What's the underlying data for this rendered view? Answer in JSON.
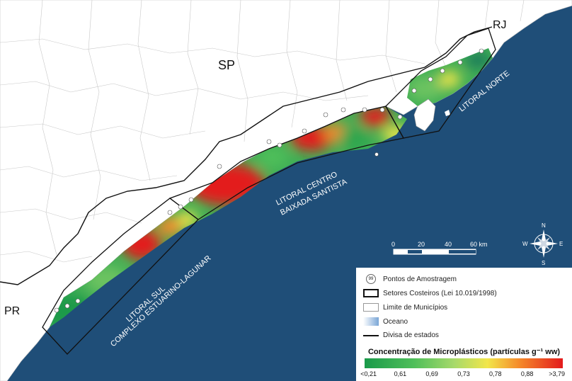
{
  "labels": {
    "sp": "SP",
    "rj": "RJ",
    "pr": "PR",
    "litoral_norte": "LITORAL NORTE",
    "litoral_centro_1": "LITORAL CENTRO",
    "litoral_centro_2": "BAIXADA SANTISTA",
    "litoral_sul_1": "LITORAL SUL",
    "litoral_sul_2": "COMPLEXO ESTUARINO-LAGUNAR"
  },
  "scale_bar": {
    "ticks": [
      "0",
      "20",
      "40",
      "60 km"
    ]
  },
  "compass": {
    "n": "N",
    "s": "S",
    "e": "E",
    "w": "W"
  },
  "legend": {
    "sample_symbol": "99",
    "sample_points": "Pontos de Amostragem",
    "sectors": "Setores Costeiros (Lei 10.019/1998)",
    "municipalities": "Limite de Municípios",
    "ocean": "Oceano",
    "state_border": "Divisa de estados"
  },
  "colorbar": {
    "title": "Concentração de Microplásticos (partículas g⁻¹ ww)",
    "ticks": [
      "<0,21",
      "0,61",
      "0,69",
      "0,73",
      "0,78",
      "0,88",
      ">3,79"
    ]
  },
  "colors": {
    "ocean": "#1f4e78",
    "land": "#ffffff",
    "low": "#1a9a4a",
    "mid": "#f2e64a",
    "high": "#e31a1c"
  }
}
